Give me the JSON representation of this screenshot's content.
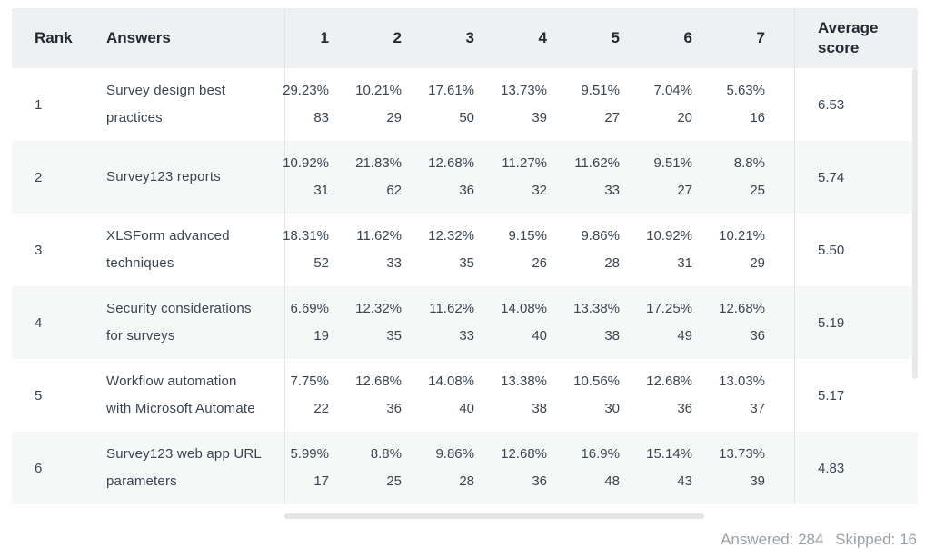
{
  "header": {
    "rank": "Rank",
    "answers": "Answers",
    "columns": [
      "1",
      "2",
      "3",
      "4",
      "5",
      "6",
      "7"
    ],
    "average_line1": "Average",
    "average_line2": "score"
  },
  "rows": [
    {
      "rank": "1",
      "answer_line1": "Survey design best",
      "answer_line2": "practices",
      "pct": [
        "29.23%",
        "10.21%",
        "17.61%",
        "13.73%",
        "9.51%",
        "7.04%",
        "5.63%"
      ],
      "count": [
        "83",
        "29",
        "50",
        "39",
        "27",
        "20",
        "16"
      ],
      "avg": "6.53"
    },
    {
      "rank": "2",
      "answer_line1": "Survey123 reports",
      "answer_line2": "",
      "pct": [
        "10.92%",
        "21.83%",
        "12.68%",
        "11.27%",
        "11.62%",
        "9.51%",
        "8.8%"
      ],
      "count": [
        "31",
        "62",
        "36",
        "32",
        "33",
        "27",
        "25"
      ],
      "avg": "5.74"
    },
    {
      "rank": "3",
      "answer_line1": "XLSForm advanced",
      "answer_line2": "techniques",
      "pct": [
        "18.31%",
        "11.62%",
        "12.32%",
        "9.15%",
        "9.86%",
        "10.92%",
        "10.21%"
      ],
      "count": [
        "52",
        "33",
        "35",
        "26",
        "28",
        "31",
        "29"
      ],
      "avg": "5.50"
    },
    {
      "rank": "4",
      "answer_line1": "Security considerations",
      "answer_line2": "for surveys",
      "pct": [
        "6.69%",
        "12.32%",
        "11.62%",
        "14.08%",
        "13.38%",
        "17.25%",
        "12.68%"
      ],
      "count": [
        "19",
        "35",
        "33",
        "40",
        "38",
        "49",
        "36"
      ],
      "avg": "5.19"
    },
    {
      "rank": "5",
      "answer_line1": "Workflow automation",
      "answer_line2": "with Microsoft Automate",
      "pct": [
        "7.75%",
        "12.68%",
        "14.08%",
        "13.38%",
        "10.56%",
        "12.68%",
        "13.03%"
      ],
      "count": [
        "22",
        "36",
        "40",
        "38",
        "30",
        "36",
        "37"
      ],
      "avg": "5.17"
    },
    {
      "rank": "6",
      "answer_line1": "Survey123 web app URL",
      "answer_line2": "parameters",
      "pct": [
        "5.99%",
        "8.8%",
        "9.86%",
        "12.68%",
        "16.9%",
        "15.14%",
        "13.73%"
      ],
      "count": [
        "17",
        "25",
        "28",
        "36",
        "48",
        "43",
        "39"
      ],
      "avg": "4.83"
    }
  ],
  "footer": {
    "answered": "Answered: 284",
    "skipped": "Skipped: 16"
  }
}
